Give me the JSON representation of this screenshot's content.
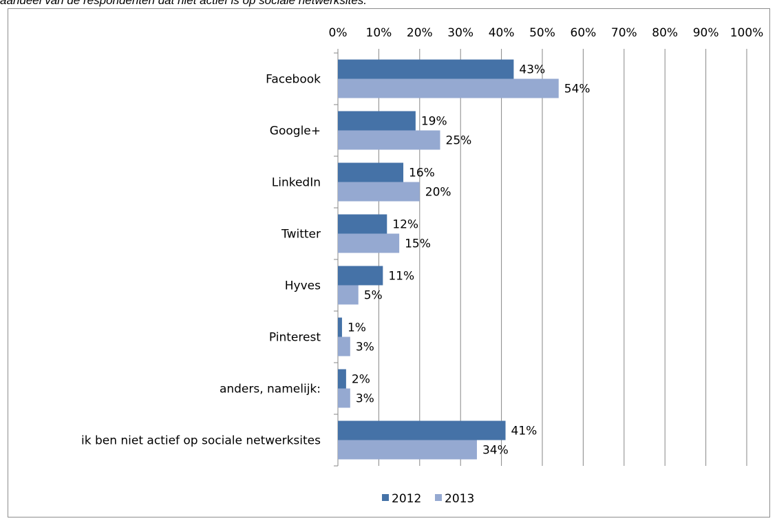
{
  "caption": "aandeel van de respondenten dat niet actief is op sociale netwerksites.",
  "chart_data": {
    "type": "bar",
    "orientation": "horizontal",
    "categories": [
      "Facebook",
      "Google+",
      "LinkedIn",
      "Twitter",
      "Hyves",
      "Pinterest",
      "anders, namelijk:",
      "ik ben niet actief op sociale netwerksites"
    ],
    "series": [
      {
        "name": "2012",
        "values": [
          43,
          19,
          16,
          12,
          11,
          1,
          2,
          41
        ],
        "labels": [
          "43%",
          "19%",
          "16%",
          "12%",
          "11%",
          "1%",
          "2%",
          "41%"
        ],
        "color": "#4572A7"
      },
      {
        "name": "2013",
        "values": [
          54,
          25,
          20,
          15,
          5,
          3,
          3,
          34
        ],
        "labels": [
          "54%",
          "25%",
          "20%",
          "15%",
          "5%",
          "3%",
          "3%",
          "34%"
        ],
        "color": "#95A9D1"
      }
    ],
    "xlim": [
      0,
      100
    ],
    "ticks": [
      0,
      10,
      20,
      30,
      40,
      50,
      60,
      70,
      80,
      90,
      100
    ],
    "tick_labels": [
      "0%",
      "10%",
      "20%",
      "30%",
      "40%",
      "50%",
      "60%",
      "70%",
      "80%",
      "90%",
      "100%"
    ],
    "axis_position": "top",
    "grid": true,
    "legend": "bottom"
  }
}
